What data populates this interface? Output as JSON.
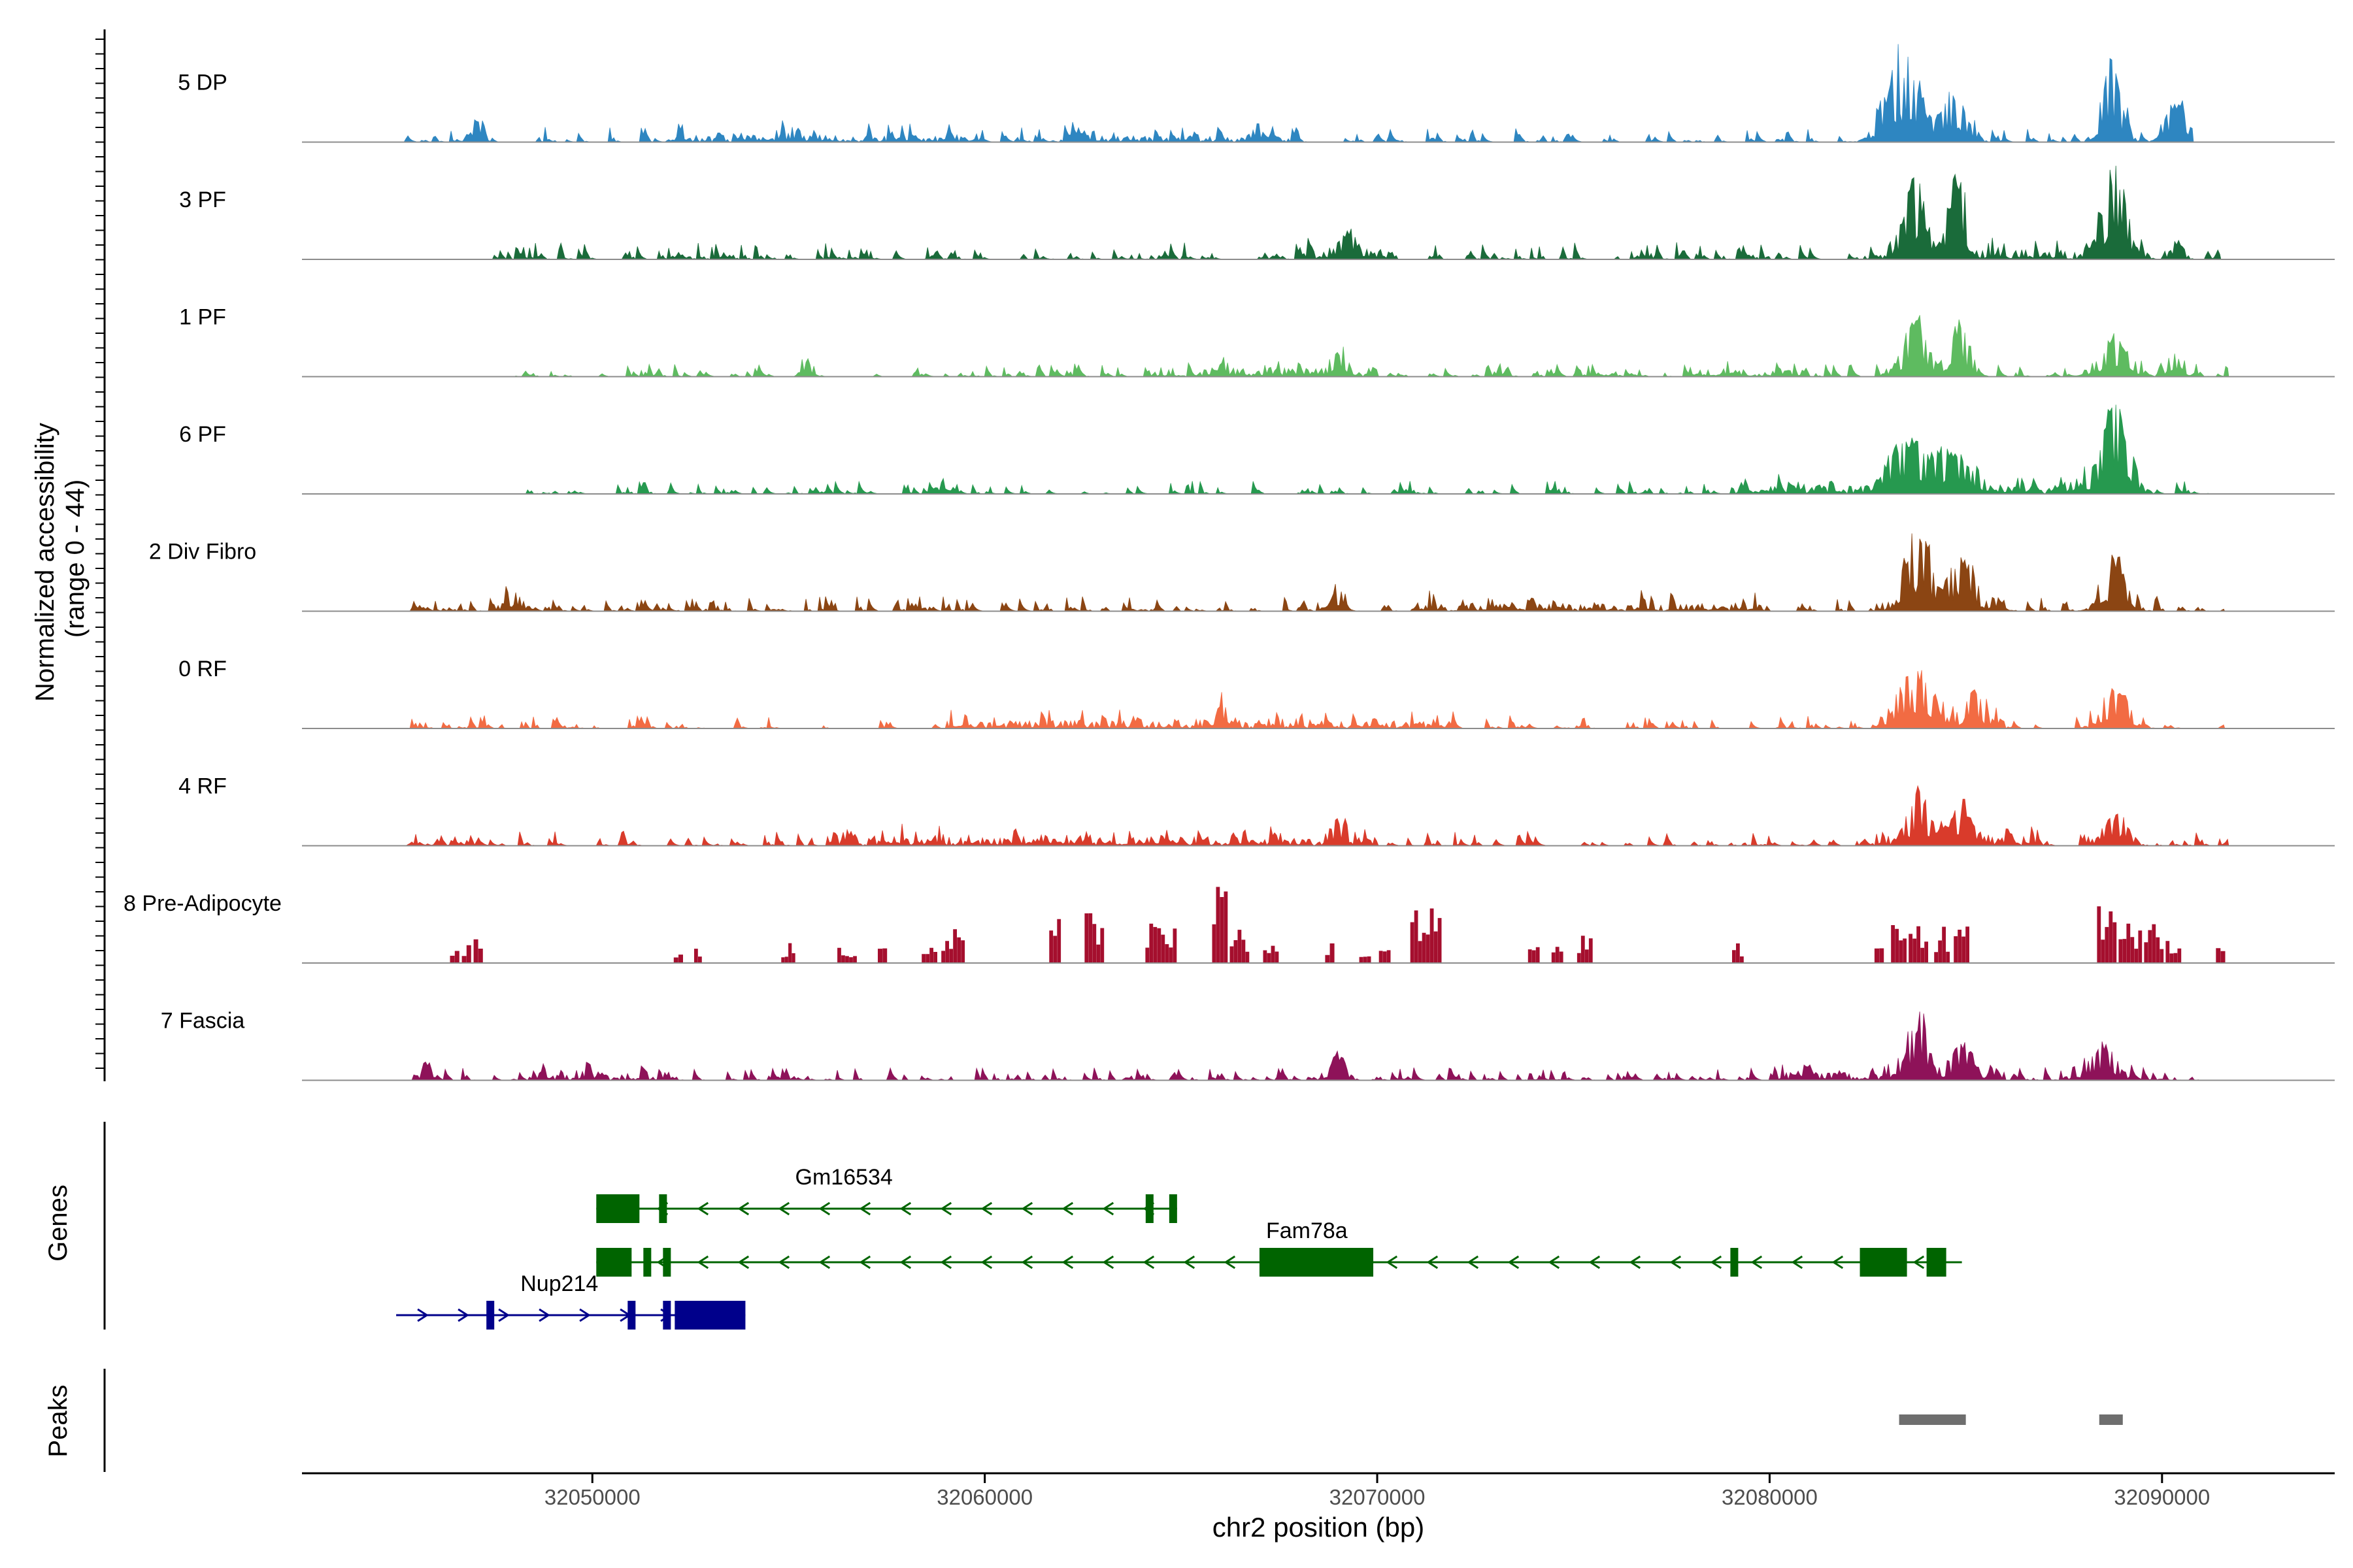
{
  "chart_data": {
    "type": "area",
    "title": "",
    "xlabel": "chr2 position (bp)",
    "ylabel_line1": "Normalized accessibility",
    "ylabel_line2": "(range 0 - 44)",
    "y_range": [
      0,
      44
    ],
    "x_range": [
      32042600,
      32094400
    ],
    "x_ticks": [
      32050000,
      32060000,
      32070000,
      32080000,
      32090000
    ],
    "x_tick_labels": [
      "32050000",
      "32060000",
      "32070000",
      "32080000",
      "32090000"
    ],
    "track_labels": {
      "genes": "Genes",
      "peaks": "Peaks"
    },
    "series": [
      {
        "name": "5 DP",
        "color": "#2E86C1",
        "start": 32045100,
        "end": 32090800,
        "noise": 0.07,
        "seed": 11,
        "sparse": false,
        "clusters": [
          [
            32052000,
            32060000,
            0.07
          ],
          [
            32062000,
            32068000,
            0.06
          ]
        ],
        "peaks": [
          [
            32083400,
            400,
            0.95
          ],
          [
            32084700,
            300,
            0.55
          ],
          [
            32088700,
            250,
            0.85
          ],
          [
            32090400,
            250,
            0.5
          ],
          [
            32047100,
            150,
            0.22
          ],
          [
            32066900,
            150,
            0.18
          ]
        ]
      },
      {
        "name": "3 PF",
        "color": "#1A6B3A",
        "start": 32047200,
        "end": 32091500,
        "noise": 0.08,
        "seed": 23,
        "sparse": false,
        "clusters": [
          [
            32068000,
            32070500,
            0.1
          ],
          [
            32083000,
            32089000,
            0.1
          ]
        ],
        "peaks": [
          [
            32083700,
            250,
            0.82
          ],
          [
            32084800,
            220,
            0.9
          ],
          [
            32088800,
            280,
            1.0
          ],
          [
            32069200,
            200,
            0.25
          ],
          [
            32090400,
            150,
            0.2
          ]
        ]
      },
      {
        "name": "1 PF",
        "color": "#5EBB60",
        "start": 32048000,
        "end": 32091700,
        "noise": 0.06,
        "seed": 37,
        "sparse": false,
        "clusters": [
          [
            32065000,
            32070000,
            0.08
          ],
          [
            32078000,
            32081000,
            0.07
          ]
        ],
        "peaks": [
          [
            32083700,
            300,
            0.65
          ],
          [
            32084800,
            250,
            0.58
          ],
          [
            32088800,
            350,
            0.45
          ],
          [
            32069000,
            180,
            0.26
          ],
          [
            32055500,
            150,
            0.18
          ],
          [
            32090300,
            150,
            0.25
          ]
        ]
      },
      {
        "name": "6 PF",
        "color": "#26994F",
        "start": 32047300,
        "end": 32091200,
        "noise": 0.06,
        "seed": 51,
        "sparse": false,
        "clusters": [
          [
            32079000,
            32083000,
            0.09
          ],
          [
            32085000,
            32089000,
            0.09
          ]
        ],
        "peaks": [
          [
            32083500,
            400,
            0.6
          ],
          [
            32084600,
            400,
            0.52
          ],
          [
            32088800,
            350,
            0.92
          ],
          [
            32059000,
            150,
            0.2
          ]
        ]
      },
      {
        "name": "2 Div Fibro",
        "color": "#8B4513",
        "start": 32045300,
        "end": 32091600,
        "noise": 0.07,
        "seed": 67,
        "sparse": false,
        "clusters": [
          [
            32071000,
            32080000,
            0.07
          ],
          [
            32082500,
            32086000,
            0.1
          ]
        ],
        "peaks": [
          [
            32083800,
            300,
            0.92
          ],
          [
            32084900,
            280,
            0.62
          ],
          [
            32088800,
            300,
            0.52
          ],
          [
            32069000,
            180,
            0.22
          ],
          [
            32048000,
            250,
            0.18
          ]
        ]
      },
      {
        "name": "0 RF",
        "color": "#F26B43",
        "start": 32045300,
        "end": 32091600,
        "noise": 0.06,
        "seed": 79,
        "sparse": false,
        "clusters": [
          [
            32059000,
            32072000,
            0.08
          ],
          [
            32082800,
            32086000,
            0.09
          ]
        ],
        "peaks": [
          [
            32083500,
            300,
            0.46
          ],
          [
            32084000,
            250,
            0.42
          ],
          [
            32085200,
            250,
            0.36
          ],
          [
            32088800,
            300,
            0.48
          ],
          [
            32066000,
            200,
            0.18
          ]
        ]
      },
      {
        "name": "4 RF",
        "color": "#D93B2B",
        "start": 32045200,
        "end": 32091700,
        "noise": 0.07,
        "seed": 97,
        "sparse": false,
        "clusters": [
          [
            32056000,
            32070000,
            0.09
          ],
          [
            32082800,
            32087000,
            0.09
          ]
        ],
        "peaks": [
          [
            32083800,
            250,
            0.6
          ],
          [
            32084900,
            250,
            0.42
          ],
          [
            32088800,
            300,
            0.38
          ],
          [
            32069000,
            200,
            0.2
          ]
        ]
      },
      {
        "name": "8 Pre-Adipocyte",
        "color": "#A50F2E",
        "start": 32046200,
        "end": 32091700,
        "noise": 0,
        "seed": 113,
        "sparse": true,
        "clusters": [],
        "peaks": [
          [
            32046500,
            120,
            0.18
          ],
          [
            32046800,
            120,
            0.2
          ],
          [
            32047100,
            120,
            0.38
          ],
          [
            32052200,
            120,
            0.2
          ],
          [
            32052700,
            100,
            0.18
          ],
          [
            32055000,
            180,
            0.2
          ],
          [
            32056500,
            250,
            0.22
          ],
          [
            32057400,
            120,
            0.2
          ],
          [
            32058600,
            200,
            0.28
          ],
          [
            32059200,
            300,
            0.35
          ],
          [
            32061800,
            150,
            0.6
          ],
          [
            32062800,
            250,
            0.68
          ],
          [
            32064300,
            200,
            0.5
          ],
          [
            32064700,
            200,
            0.45
          ],
          [
            32066000,
            200,
            1.0
          ],
          [
            32066500,
            250,
            0.4
          ],
          [
            32067300,
            200,
            0.25
          ],
          [
            32068800,
            120,
            0.2
          ],
          [
            32069700,
            150,
            0.2
          ],
          [
            32070200,
            150,
            0.2
          ],
          [
            32071100,
            250,
            0.7
          ],
          [
            32071400,
            250,
            0.6
          ],
          [
            32074000,
            150,
            0.2
          ],
          [
            32074600,
            150,
            0.22
          ],
          [
            32075300,
            200,
            0.35
          ],
          [
            32079200,
            150,
            0.2
          ],
          [
            32082800,
            120,
            0.2
          ],
          [
            32083300,
            200,
            0.72
          ],
          [
            32083800,
            250,
            0.6
          ],
          [
            32084400,
            200,
            0.45
          ],
          [
            32084900,
            200,
            0.55
          ],
          [
            32088600,
            250,
            0.72
          ],
          [
            32089200,
            300,
            0.55
          ],
          [
            32089800,
            250,
            0.45
          ],
          [
            32090300,
            200,
            0.3
          ],
          [
            32091500,
            120,
            0.2
          ]
        ]
      },
      {
        "name": "7 Fascia",
        "color": "#8E1259",
        "start": 32045300,
        "end": 32091100,
        "noise": 0.06,
        "seed": 131,
        "sparse": false,
        "clusters": [
          [
            32048500,
            32052000,
            0.08
          ],
          [
            32080000,
            32086000,
            0.08
          ]
        ],
        "peaks": [
          [
            32083800,
            250,
            0.7
          ],
          [
            32084900,
            250,
            0.4
          ],
          [
            32088500,
            350,
            0.36
          ],
          [
            32069000,
            200,
            0.3
          ],
          [
            32045800,
            150,
            0.18
          ]
        ]
      }
    ],
    "genes": [
      {
        "name": "Gm16534",
        "color": "#006400",
        "strand": "-",
        "row": 0,
        "start": 32050100,
        "end": 32064900,
        "label_x": 32056000,
        "exons": [
          [
            32050100,
            32051200,
            "cds"
          ],
          [
            32051700,
            32051900,
            "utr"
          ],
          [
            32064100,
            32064300,
            "utr"
          ],
          [
            32064700,
            32064900,
            "utr"
          ]
        ]
      },
      {
        "name": "Fam78a",
        "color": "#006400",
        "strand": "-",
        "row": 1,
        "start": 32050100,
        "end": 32084900,
        "label_x": 32068000,
        "exons": [
          [
            32050100,
            32051000,
            "cds"
          ],
          [
            32051300,
            32051500,
            "utr"
          ],
          [
            32051800,
            32052000,
            "utr"
          ],
          [
            32067000,
            32069900,
            "cds"
          ],
          [
            32079000,
            32079200,
            "utr"
          ],
          [
            32082300,
            32083500,
            "cds"
          ],
          [
            32084000,
            32084500,
            "cds"
          ]
        ]
      },
      {
        "name": "Nup214",
        "color": "#00008B",
        "strand": "+",
        "row": 2,
        "start": 32045000,
        "end": 32053900,
        "label_x": 32049000,
        "exons": [
          [
            32047300,
            32047500,
            "cds"
          ],
          [
            32050900,
            32051100,
            "cds"
          ],
          [
            32051800,
            32052000,
            "utr"
          ],
          [
            32052100,
            32053900,
            "cds"
          ]
        ]
      }
    ],
    "peak_regions": [
      {
        "start": 32083300,
        "end": 32085000
      },
      {
        "start": 32088400,
        "end": 32089000
      }
    ]
  }
}
